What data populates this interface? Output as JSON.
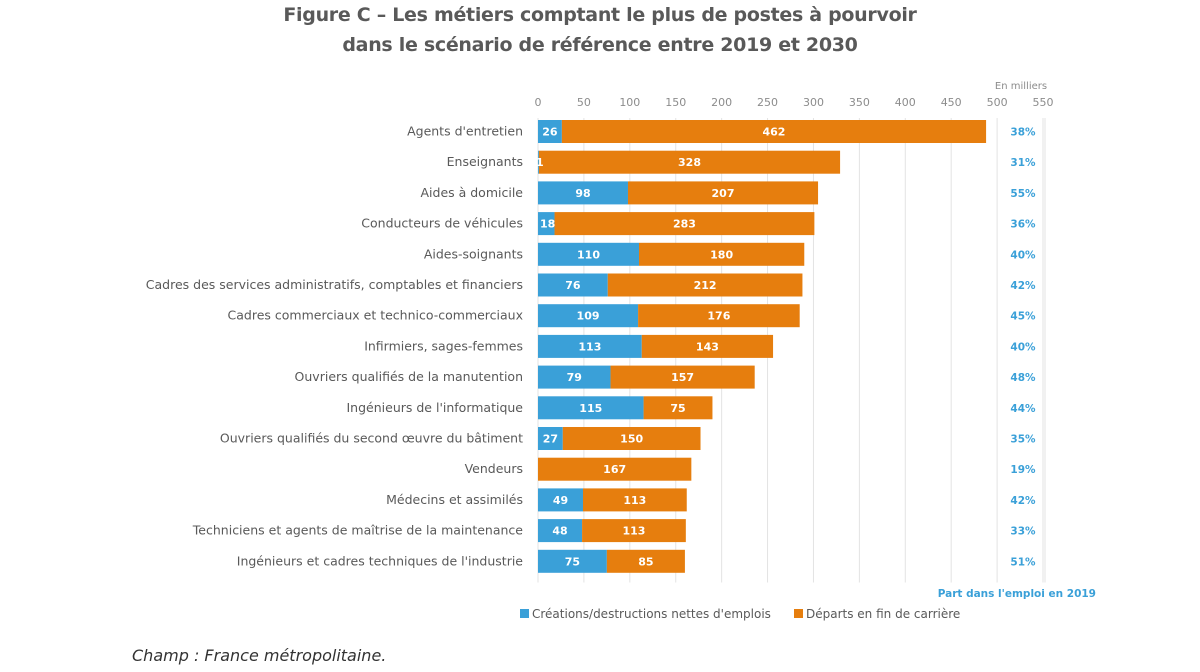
{
  "chart_data": {
    "type": "bar",
    "orientation": "horizontal",
    "stacked": true,
    "title_line1": "Figure C – Les métiers comptant le plus de postes à pourvoir",
    "title_line2": "dans le scénario de référence entre 2019 et 2030",
    "unit_label": "En milliers",
    "xlim": [
      0,
      550
    ],
    "xticks": [
      "0",
      "50",
      "100",
      "150",
      "200",
      "250",
      "300",
      "350",
      "400",
      "450",
      "500",
      "550"
    ],
    "grid": true,
    "categories": [
      "Agents d'entretien",
      "Enseignants",
      "Aides à domicile",
      "Conducteurs de véhicules",
      "Aides-soignants",
      "Cadres des services administratifs, comptables et financiers",
      "Cadres commerciaux et technico-commerciaux",
      "Infirmiers, sages-femmes",
      "Ouvriers qualifiés de la manutention",
      "Ingénieurs de l'informatique",
      "Ouvriers qualifiés du second œuvre du bâtiment",
      "Vendeurs",
      "Médecins et assimilés",
      "Techniciens et agents de maîtrise de la maintenance",
      "Ingénieurs et cadres techniques de l'industrie"
    ],
    "series": [
      {
        "name": "Créations/destructions nettes d'emplois",
        "color": "#3aa0d8",
        "values": [
          26,
          1,
          98,
          18,
          110,
          76,
          109,
          113,
          79,
          115,
          27,
          0,
          49,
          48,
          75
        ],
        "labels": [
          "26",
          "1",
          "98",
          "18",
          "110",
          "76",
          "109",
          "113",
          "79",
          "115",
          "27",
          "",
          "49",
          "48",
          "75"
        ]
      },
      {
        "name": "Départs en fin de carrière",
        "color": "#e67e0e",
        "values": [
          462,
          328,
          207,
          283,
          180,
          212,
          176,
          143,
          157,
          75,
          150,
          167,
          113,
          113,
          85
        ],
        "labels": [
          "462",
          "328",
          "207",
          "283",
          "180",
          "212",
          "176",
          "143",
          "157",
          "75",
          "150",
          "167",
          "113",
          "113",
          "85"
        ]
      }
    ],
    "share_column": {
      "title": "Part dans l'emploi en 2019",
      "values": [
        "38%",
        "31%",
        "55%",
        "36%",
        "40%",
        "42%",
        "45%",
        "40%",
        "48%",
        "44%",
        "35%",
        "19%",
        "42%",
        "33%",
        "51%"
      ]
    },
    "legend_position": "bottom"
  },
  "footnote": "Champ : France métropolitaine."
}
